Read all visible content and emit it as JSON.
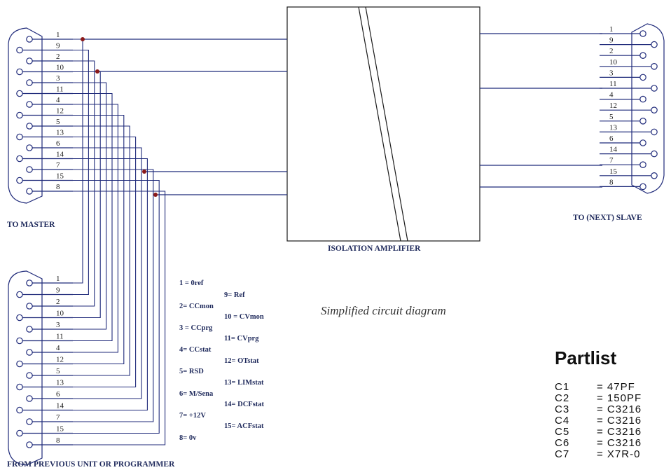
{
  "connectors": {
    "master": {
      "caption": "TO MASTER",
      "pin_labels": [
        "1",
        "9",
        "2",
        "10",
        "3",
        "11",
        "4",
        "12",
        "5",
        "13",
        "6",
        "14",
        "7",
        "15",
        "8"
      ]
    },
    "slave": {
      "caption": "TO (NEXT) SLAVE",
      "pin_labels": [
        "1",
        "9",
        "2",
        "10",
        "3",
        "11",
        "4",
        "12",
        "5",
        "13",
        "6",
        "14",
        "7",
        "15",
        "8"
      ]
    },
    "previous": {
      "caption": "FROM PREVIOUS UNIT OR PROGRAMMER",
      "pin_labels": [
        "1",
        "9",
        "2",
        "10",
        "3",
        "11",
        "4",
        "12",
        "5",
        "13",
        "6",
        "14",
        "7",
        "15",
        "8"
      ]
    }
  },
  "amplifier": {
    "caption": "ISOLATION AMPLIFIER"
  },
  "pin_legend": {
    "left": [
      "1 = 0ref",
      "2= CCmon",
      "3 = CCprg",
      "4= CCstat",
      "5= RSD",
      "6= M/Sena",
      "7= +12V",
      "8= 0v"
    ],
    "right": [
      "9= Ref",
      "10 = CVmon",
      "11= CVprg",
      "12= OTstat",
      "13= LIMstat",
      "14= DCFstat",
      "15= ACFstat"
    ]
  },
  "diagram_caption": "Simplified circuit diagram",
  "partlist": {
    "title": "Partlist",
    "rows": [
      {
        "ref": "C1",
        "value": "=  47PF"
      },
      {
        "ref": "C2",
        "value": "=  150PF"
      },
      {
        "ref": "C3",
        "value": "=  C3216"
      },
      {
        "ref": "C4",
        "value": "=  C3216"
      },
      {
        "ref": "C5",
        "value": "=  C3216"
      },
      {
        "ref": "C6",
        "value": "=  C3216"
      },
      {
        "ref": "C7",
        "value": "=  X7R-0"
      }
    ]
  },
  "colors": {
    "wire": "#1f2a7a",
    "node": "#8b1a1a",
    "ink": "#1a1a1a"
  }
}
